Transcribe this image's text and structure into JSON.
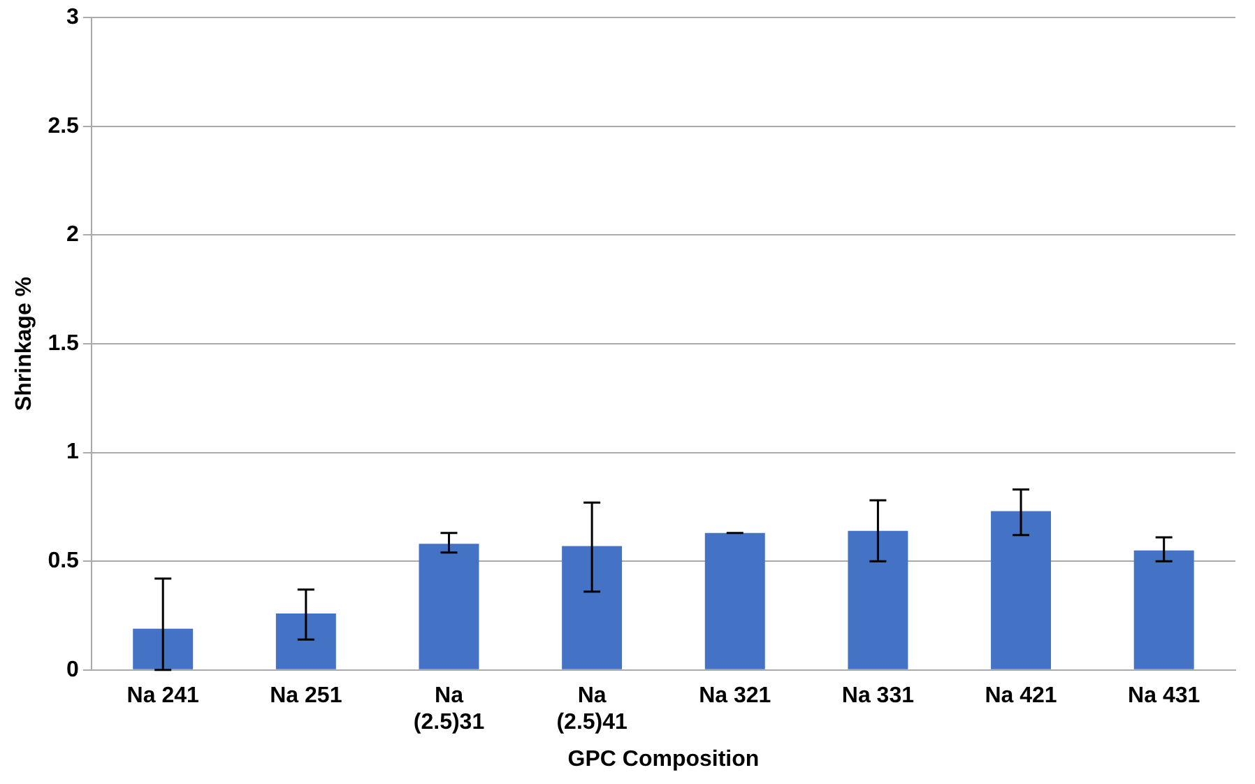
{
  "chart_data": {
    "type": "bar",
    "xlabel": "GPC Composition",
    "ylabel": "Shrinkage %",
    "categories": [
      "Na 241",
      "Na 251",
      "Na (2.5)31",
      "Na (2.5)41",
      "Na 321",
      "Na 331",
      "Na 421",
      "Na 431"
    ],
    "values": [
      0.19,
      0.26,
      0.58,
      0.57,
      0.63,
      0.64,
      0.73,
      0.55
    ],
    "errors": [
      [
        0,
        0.42
      ],
      [
        0.14,
        0.37
      ],
      [
        0.54,
        0.63
      ],
      [
        0.36,
        0.77
      ],
      [
        0.63,
        0.63
      ],
      [
        0.5,
        0.78
      ],
      [
        0.62,
        0.83
      ],
      [
        0.5,
        0.61
      ]
    ],
    "color": "#4472c4",
    "ylim": [
      0,
      3
    ],
    "yticks": [
      0,
      0.5,
      1,
      1.5,
      2,
      2.5,
      3
    ],
    "grid": "y",
    "legend": false
  }
}
